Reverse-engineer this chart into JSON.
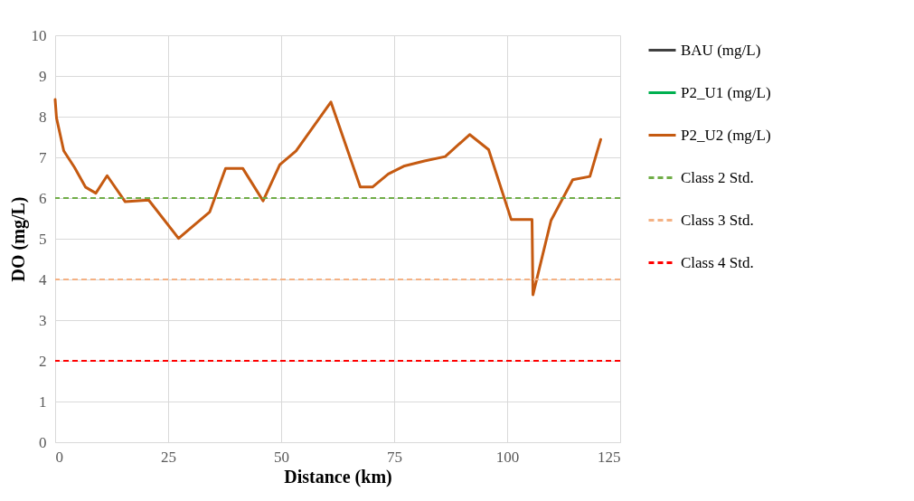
{
  "chart_data": {
    "type": "line",
    "xlabel": "Distance (km)",
    "ylabel": "DO (mg/L)",
    "x": [
      0,
      0.3,
      1.9,
      4.3,
      6.7,
      9.0,
      11.5,
      15.5,
      20.7,
      27.3,
      34.2,
      37.7,
      41.5,
      46,
      49.7,
      53.3,
      61,
      67.5,
      70.2,
      73.7,
      77.3,
      81.7,
      86.3,
      91.7,
      95.9,
      100.9,
      105.5,
      105.7,
      109.7,
      114.5,
      118.3,
      120.7
    ],
    "series": [
      {
        "name": "BAU (mg/L)",
        "color": "#404040",
        "values": [
          null,
          null,
          null,
          null,
          null,
          null,
          null,
          null,
          null,
          null,
          null,
          null,
          null,
          null,
          null,
          null,
          null,
          null,
          null,
          null,
          null,
          null,
          null,
          null,
          null,
          null,
          null,
          null,
          null,
          null,
          null,
          null
        ]
      },
      {
        "name": "P2_U1 (mg/L)",
        "color": "#00b050",
        "values": [
          null,
          null,
          null,
          null,
          null,
          null,
          null,
          null,
          null,
          null,
          null,
          null,
          null,
          null,
          null,
          null,
          null,
          null,
          null,
          null,
          null,
          null,
          null,
          null,
          null,
          null,
          null,
          null,
          null,
          null,
          null,
          null
        ]
      },
      {
        "name": "P2_U2 (mg/L)",
        "color": "#c55a11",
        "values": [
          8.42,
          7.97,
          7.16,
          6.75,
          6.27,
          6.12,
          6.55,
          5.91,
          5.95,
          5.01,
          5.66,
          6.73,
          6.73,
          5.93,
          6.82,
          7.16,
          8.36,
          6.27,
          6.27,
          6.59,
          6.79,
          6.91,
          7.02,
          7.56,
          7.19,
          5.47,
          5.47,
          3.62,
          5.45,
          6.45,
          6.53,
          7.44
        ]
      }
    ],
    "ref_lines": [
      {
        "axis": "y",
        "value": 6,
        "label": "Class 2 Std.",
        "color": "#70ad47",
        "line_style": "dashed"
      },
      {
        "axis": "y",
        "value": 4,
        "label": "Class 3 Std.",
        "color": "#f4b183",
        "line_style": "dashed"
      },
      {
        "axis": "y",
        "value": 2,
        "label": "Class 4 Std.",
        "color": "#ff0000",
        "line_style": "dashed"
      }
    ],
    "xlim": [
      0,
      125
    ],
    "xticks": [
      0,
      25,
      50,
      75,
      100,
      125
    ],
    "ylim": [
      0,
      10
    ],
    "yticks": [
      0,
      1,
      2,
      3,
      4,
      5,
      6,
      7,
      8,
      9,
      10
    ],
    "grid": true,
    "legend": "right",
    "marker": "none",
    "line_style": "solid"
  }
}
